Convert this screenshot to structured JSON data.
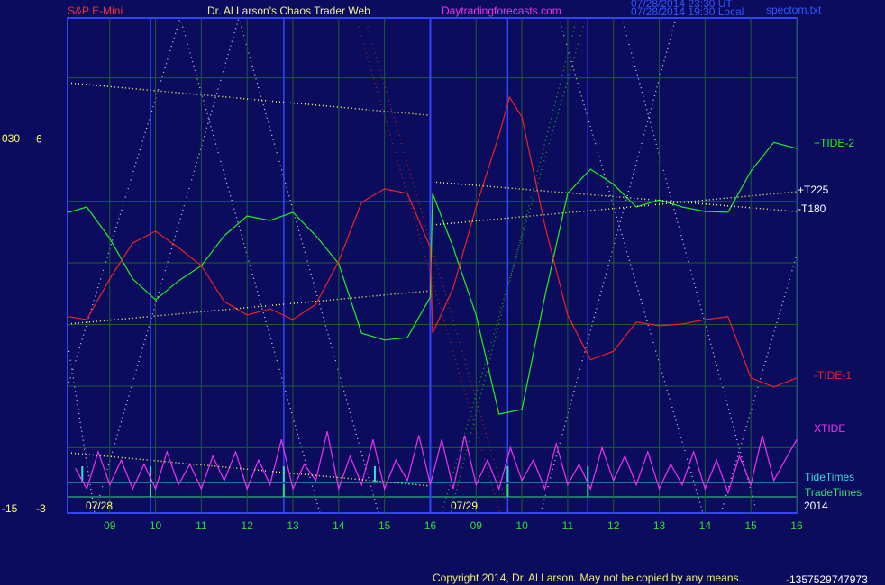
{
  "header": {
    "symbol": "S&P E-Mini",
    "site_title": "Dr. Al Larson's Chaos Trader Web",
    "url": "Daytradingforecasts.com",
    "time_ut": "07/28/2014 23:30 UT",
    "time_local": "07/28/2014 19:30 Local",
    "file": "spectom.txt"
  },
  "footer": {
    "copyright": "Copyright 2014, Dr. Al Larson. May not be copied by any means.",
    "id": "-1357529747973"
  },
  "chart_data": {
    "type": "line",
    "xlim": [
      8.08,
      24.02
    ],
    "ylim": [
      -3.09,
      8.96
    ],
    "y2lim": [
      -15.44,
      44.78
    ],
    "xticks": [
      {
        "value": 9,
        "label": "09"
      },
      10,
      11,
      12,
      13,
      14,
      15,
      16,
      {
        "value": 17,
        "label": "09"
      },
      {
        "value": 18,
        "label": "10"
      },
      {
        "value": 19,
        "label": "11"
      },
      {
        "value": 20,
        "label": "12"
      },
      {
        "value": 21,
        "label": "13"
      },
      {
        "value": 22,
        "label": "14"
      },
      {
        "value": 23,
        "label": "15"
      },
      {
        "value": 24,
        "label": "16"
      }
    ],
    "yticks": [
      6,
      -3
    ],
    "y2ticks": [
      {
        "value": 30,
        "label": "030"
      },
      -15
    ],
    "ygrid": [
      -1.5,
      0,
      1.5,
      3,
      4.5,
      7.5
    ],
    "grid": true,
    "date_labels": [
      "07/28",
      "07/29"
    ],
    "year": "2014",
    "series": [
      {
        "name": "+TIDE-2",
        "color": "#22ee22",
        "x": [
          8.1,
          8.5,
          9,
          9.5,
          10,
          10.5,
          11,
          11.5,
          12,
          12.5,
          13,
          13.5,
          14,
          14.5,
          15,
          15.5,
          16,
          16.05,
          16.5,
          17,
          17.5,
          18,
          18.5,
          19,
          19.5,
          20,
          20.5,
          21,
          21.5,
          22,
          22.5,
          23,
          23.5,
          24
        ],
        "values": [
          4.23,
          4.36,
          3.59,
          2.61,
          2.1,
          2.56,
          2.93,
          3.66,
          4.14,
          4.03,
          4.23,
          3.66,
          2.98,
          1.29,
          1.12,
          1.18,
          2.17,
          4.69,
          3.37,
          1.73,
          -0.68,
          -0.57,
          2.17,
          4.69,
          5.28,
          4.91,
          4.36,
          4.53,
          4.36,
          4.25,
          4.23,
          5.23,
          5.93,
          5.78
        ]
      },
      {
        "name": "-TIDE-1",
        "color": "#ee2222",
        "x": [
          8.1,
          8.5,
          9,
          9.5,
          10,
          10.5,
          11,
          11.5,
          12,
          12.5,
          13,
          13.5,
          14,
          14.5,
          15,
          15.5,
          16,
          16.05,
          16.5,
          17,
          17.5,
          17.73,
          18,
          18.5,
          19,
          19.5,
          20,
          20.5,
          21,
          21.5,
          22,
          22.5,
          23,
          23.5,
          24
        ],
        "values": [
          1.69,
          1.62,
          2.61,
          3.48,
          3.77,
          3.37,
          2.93,
          2.06,
          1.73,
          1.88,
          1.62,
          1.99,
          3.04,
          4.47,
          4.8,
          4.69,
          3.37,
          1.29,
          2.39,
          4.36,
          6.11,
          7.03,
          6.55,
          3.92,
          1.73,
          0.64,
          0.85,
          1.56,
          1.47,
          1.51,
          1.62,
          1.69,
          0.2,
          -0.02,
          0.2
        ]
      },
      {
        "name": "XTIDE",
        "color": "#ee33ee",
        "x": [
          8.25,
          8.5,
          8.75,
          9,
          9.25,
          9.5,
          9.75,
          10,
          10.25,
          10.5,
          10.75,
          11,
          11.25,
          11.5,
          11.75,
          12,
          12.25,
          12.5,
          12.75,
          13,
          13.25,
          13.5,
          13.75,
          14,
          14.25,
          14.5,
          14.75,
          15,
          15.25,
          15.5,
          15.75,
          16,
          16.25,
          16.5,
          16.75,
          17,
          17.25,
          17.5,
          17.75,
          18,
          18.25,
          18.5,
          18.75,
          19,
          19.25,
          19.5,
          19.75,
          20,
          20.25,
          20.5,
          20.75,
          21,
          21.25,
          21.5,
          21.75,
          22,
          22.25,
          22.5,
          22.75,
          23,
          23.25,
          23.5,
          23.75,
          24
        ],
        "values": [
          -2.0,
          -2.5,
          -1.6,
          -2.4,
          -1.8,
          -2.5,
          -1.9,
          -2.5,
          -1.6,
          -2.4,
          -1.9,
          -2.5,
          -1.7,
          -2.3,
          -1.6,
          -2.5,
          -1.8,
          -2.4,
          -1.3,
          -2.5,
          -1.9,
          -2.3,
          -1.1,
          -2.5,
          -1.7,
          -2.4,
          -1.3,
          -2.5,
          -1.8,
          -2.3,
          -1.2,
          -2.4,
          -1.3,
          -2.5,
          -1.2,
          -2.4,
          -1.8,
          -2.5,
          -1.5,
          -2.3,
          -1.8,
          -2.5,
          -1.4,
          -2.4,
          -1.9,
          -2.5,
          -1.5,
          -2.3,
          -1.7,
          -2.4,
          -1.6,
          -2.5,
          -1.9,
          -2.4,
          -1.6,
          -2.5,
          -1.8,
          -2.6,
          -1.7,
          -2.4,
          -1.2,
          -2.3,
          -1.8,
          -1.3
        ]
      },
      {
        "name": "+T225",
        "color": "#ffff66",
        "dotted": true,
        "x": [
          8.08,
          16,
          16.03,
          16.05,
          24
        ],
        "values": [
          1.51,
          2.32,
          null,
          3.92,
          4.73
        ]
      },
      {
        "name": "-T180",
        "color": "#ffff66",
        "dotted": true,
        "x": [
          8.08,
          16,
          16.03,
          16.05,
          24
        ],
        "values": [
          7.38,
          6.59,
          null,
          4.97,
          4.25
        ]
      },
      {
        "color": "#ffff66",
        "dotted": true,
        "x": [
          8.08,
          16
        ],
        "values": [
          -1.62,
          -2.43
        ]
      }
    ],
    "tide_times": {
      "name": "TideTimes",
      "color": "#33dddd",
      "x": [
        8.4,
        9.89,
        12.8,
        14.79,
        17.69,
        19.44
      ]
    },
    "trade_times": {
      "name": "TradeTimes",
      "color": "#33dd77",
      "x": [
        9.89,
        12.8,
        17.69,
        19.44
      ]
    }
  }
}
